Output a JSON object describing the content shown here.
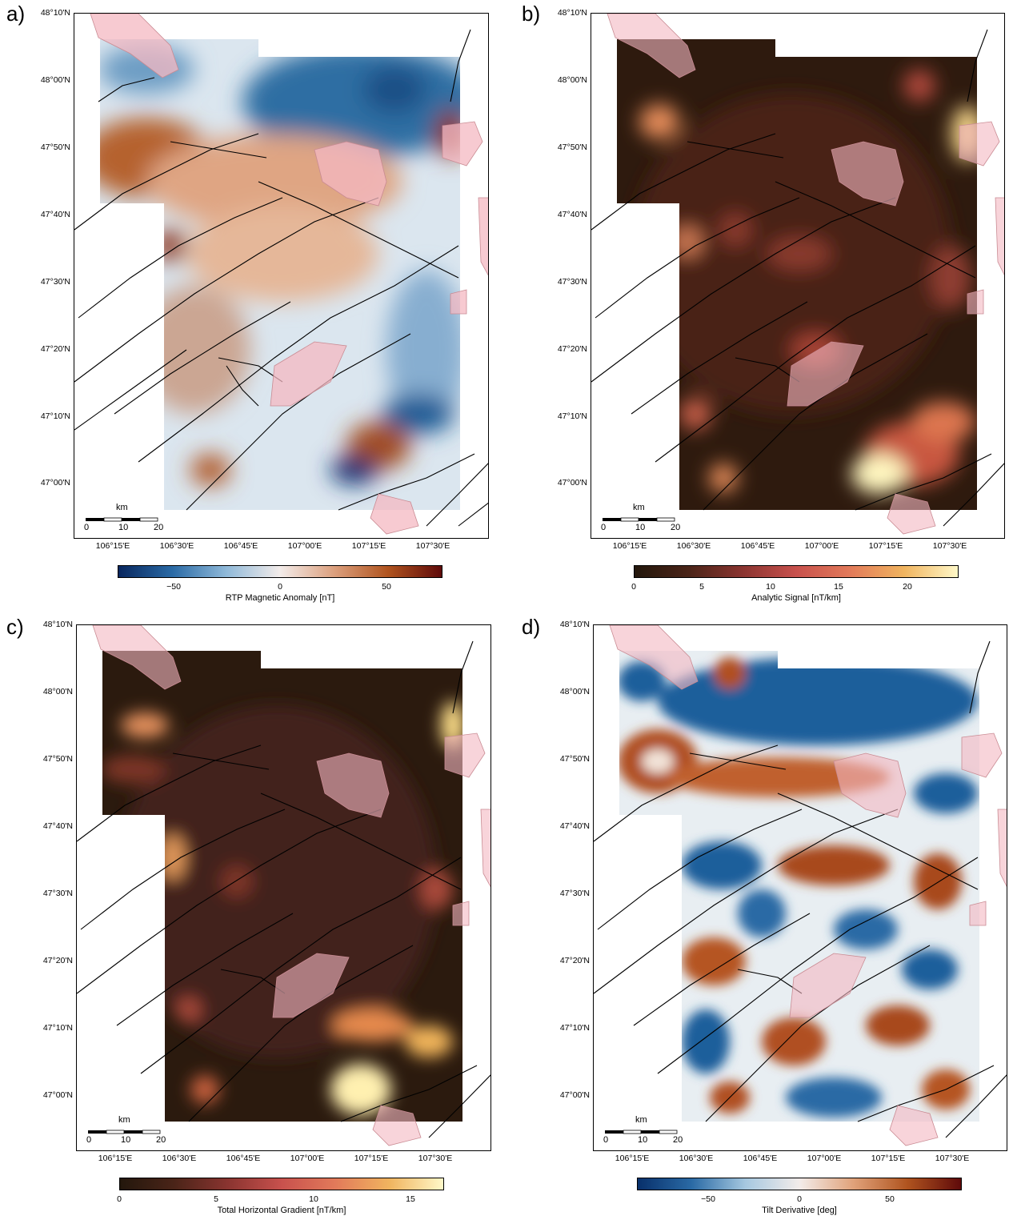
{
  "lat_ticks": [
    "48°10'N",
    "48°00'N",
    "47°50'N",
    "47°40'N",
    "47°30'N",
    "47°20'N",
    "47°10'N",
    "47°00'N"
  ],
  "lon_ticks": [
    "106°15'E",
    "106°30'E",
    "106°45'E",
    "107°00'E",
    "107°15'E",
    "107°30'E"
  ],
  "scalebar": {
    "unit": "km",
    "labels": [
      "0",
      "10",
      "20"
    ]
  },
  "panels": [
    {
      "label": "a)",
      "colormap": "blue-white-red (diverging)",
      "colorbar_title": "RTP Magnetic Anomaly [nT]",
      "colorbar_ticks": [
        "−50",
        "0",
        "50"
      ]
    },
    {
      "label": "b)",
      "colormap": "dark brown to yellow (sequential)",
      "colorbar_title": "Analytic Signal [nT/km]",
      "colorbar_ticks": [
        "0",
        "5",
        "10",
        "15",
        "20"
      ]
    },
    {
      "label": "c)",
      "colormap": "dark brown to yellow (sequential)",
      "colorbar_title": "Total Horizontal Gradient [nT/km]",
      "colorbar_ticks": [
        "0",
        "5",
        "10",
        "15"
      ]
    },
    {
      "label": "d)",
      "colormap": "blue-white-red (diverging)",
      "colorbar_title": "Tilt Derivative [deg]",
      "colorbar_ticks": [
        "−50",
        "0",
        "50"
      ]
    }
  ],
  "colors": {
    "fault_lines": "#000000",
    "intrusions": "#f4b8c2"
  }
}
